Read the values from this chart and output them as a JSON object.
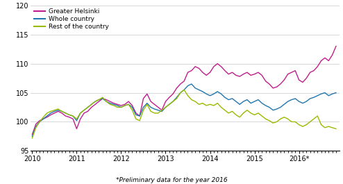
{
  "footnote": "*Preliminary data for the year 2016",
  "ylim": [
    95,
    120
  ],
  "yticks": [
    95,
    100,
    105,
    110,
    115,
    120
  ],
  "legend_labels": [
    "Greater Helsinki",
    "Whole country",
    "Rest of the country"
  ],
  "colors": [
    "#be1e8c",
    "#2176ae",
    "#99bb00"
  ],
  "line_width": 1.0,
  "xtick_labels": [
    "2010",
    "2011",
    "2012",
    "2013",
    "2014",
    "2015",
    "2016*"
  ],
  "greater_helsinki": [
    97.8,
    99.6,
    100.2,
    100.5,
    100.8,
    101.2,
    101.5,
    101.8,
    101.5,
    101.0,
    100.8,
    100.5,
    98.8,
    100.5,
    101.5,
    101.8,
    102.5,
    103.0,
    103.5,
    104.0,
    103.8,
    103.5,
    103.2,
    103.0,
    102.8,
    103.0,
    103.5,
    102.8,
    101.5,
    101.0,
    104.0,
    104.8,
    103.5,
    103.0,
    102.5,
    102.0,
    103.5,
    104.2,
    104.8,
    105.8,
    106.5,
    107.0,
    108.5,
    108.8,
    109.5,
    109.2,
    108.5,
    108.0,
    108.5,
    109.5,
    110.0,
    109.5,
    108.8,
    108.2,
    108.5,
    108.0,
    107.8,
    108.2,
    108.5,
    108.0,
    108.2,
    108.5,
    108.0,
    107.0,
    106.5,
    105.8,
    106.0,
    106.5,
    107.2,
    108.2,
    108.5,
    108.8,
    107.2,
    106.8,
    107.5,
    108.5,
    108.8,
    109.5,
    110.5,
    111.0,
    110.5,
    111.5,
    113.0
  ],
  "whole_country": [
    97.5,
    99.2,
    100.0,
    100.5,
    101.0,
    101.5,
    101.8,
    102.0,
    101.8,
    101.5,
    101.2,
    101.0,
    100.2,
    101.5,
    102.0,
    102.5,
    103.0,
    103.5,
    103.8,
    104.0,
    103.5,
    103.2,
    103.0,
    102.8,
    102.5,
    102.8,
    103.0,
    102.5,
    101.2,
    101.0,
    102.5,
    103.2,
    102.5,
    102.2,
    102.0,
    101.8,
    102.5,
    103.0,
    103.5,
    104.2,
    105.0,
    105.5,
    106.2,
    106.5,
    105.8,
    105.5,
    105.2,
    104.8,
    104.5,
    104.8,
    105.2,
    104.8,
    104.2,
    103.8,
    104.0,
    103.5,
    103.0,
    103.5,
    103.8,
    103.2,
    103.5,
    103.8,
    103.2,
    102.8,
    102.5,
    102.0,
    102.2,
    102.5,
    103.0,
    103.5,
    103.8,
    104.0,
    103.5,
    103.2,
    103.5,
    104.0,
    104.2,
    104.5,
    104.8,
    105.0,
    104.5,
    104.8,
    105.0
  ],
  "rest_of_country": [
    97.2,
    99.0,
    100.0,
    100.8,
    101.5,
    101.8,
    102.0,
    102.2,
    101.8,
    101.5,
    101.2,
    101.0,
    100.5,
    101.5,
    102.0,
    102.5,
    103.0,
    103.5,
    103.8,
    104.2,
    103.5,
    103.0,
    102.8,
    102.5,
    102.5,
    102.8,
    103.0,
    102.0,
    100.5,
    100.2,
    102.0,
    103.0,
    101.8,
    101.5,
    101.5,
    102.0,
    102.5,
    103.0,
    103.5,
    104.0,
    105.0,
    105.5,
    104.5,
    103.8,
    103.5,
    103.0,
    103.2,
    102.8,
    103.0,
    102.8,
    103.2,
    102.5,
    102.0,
    101.5,
    101.8,
    101.2,
    100.8,
    101.5,
    102.0,
    101.5,
    101.2,
    101.5,
    101.0,
    100.5,
    100.2,
    99.8,
    100.0,
    100.5,
    100.8,
    100.5,
    100.0,
    100.0,
    99.5,
    99.2,
    99.5,
    100.0,
    100.5,
    101.0,
    99.5,
    99.0,
    99.2,
    99.0,
    98.8
  ]
}
